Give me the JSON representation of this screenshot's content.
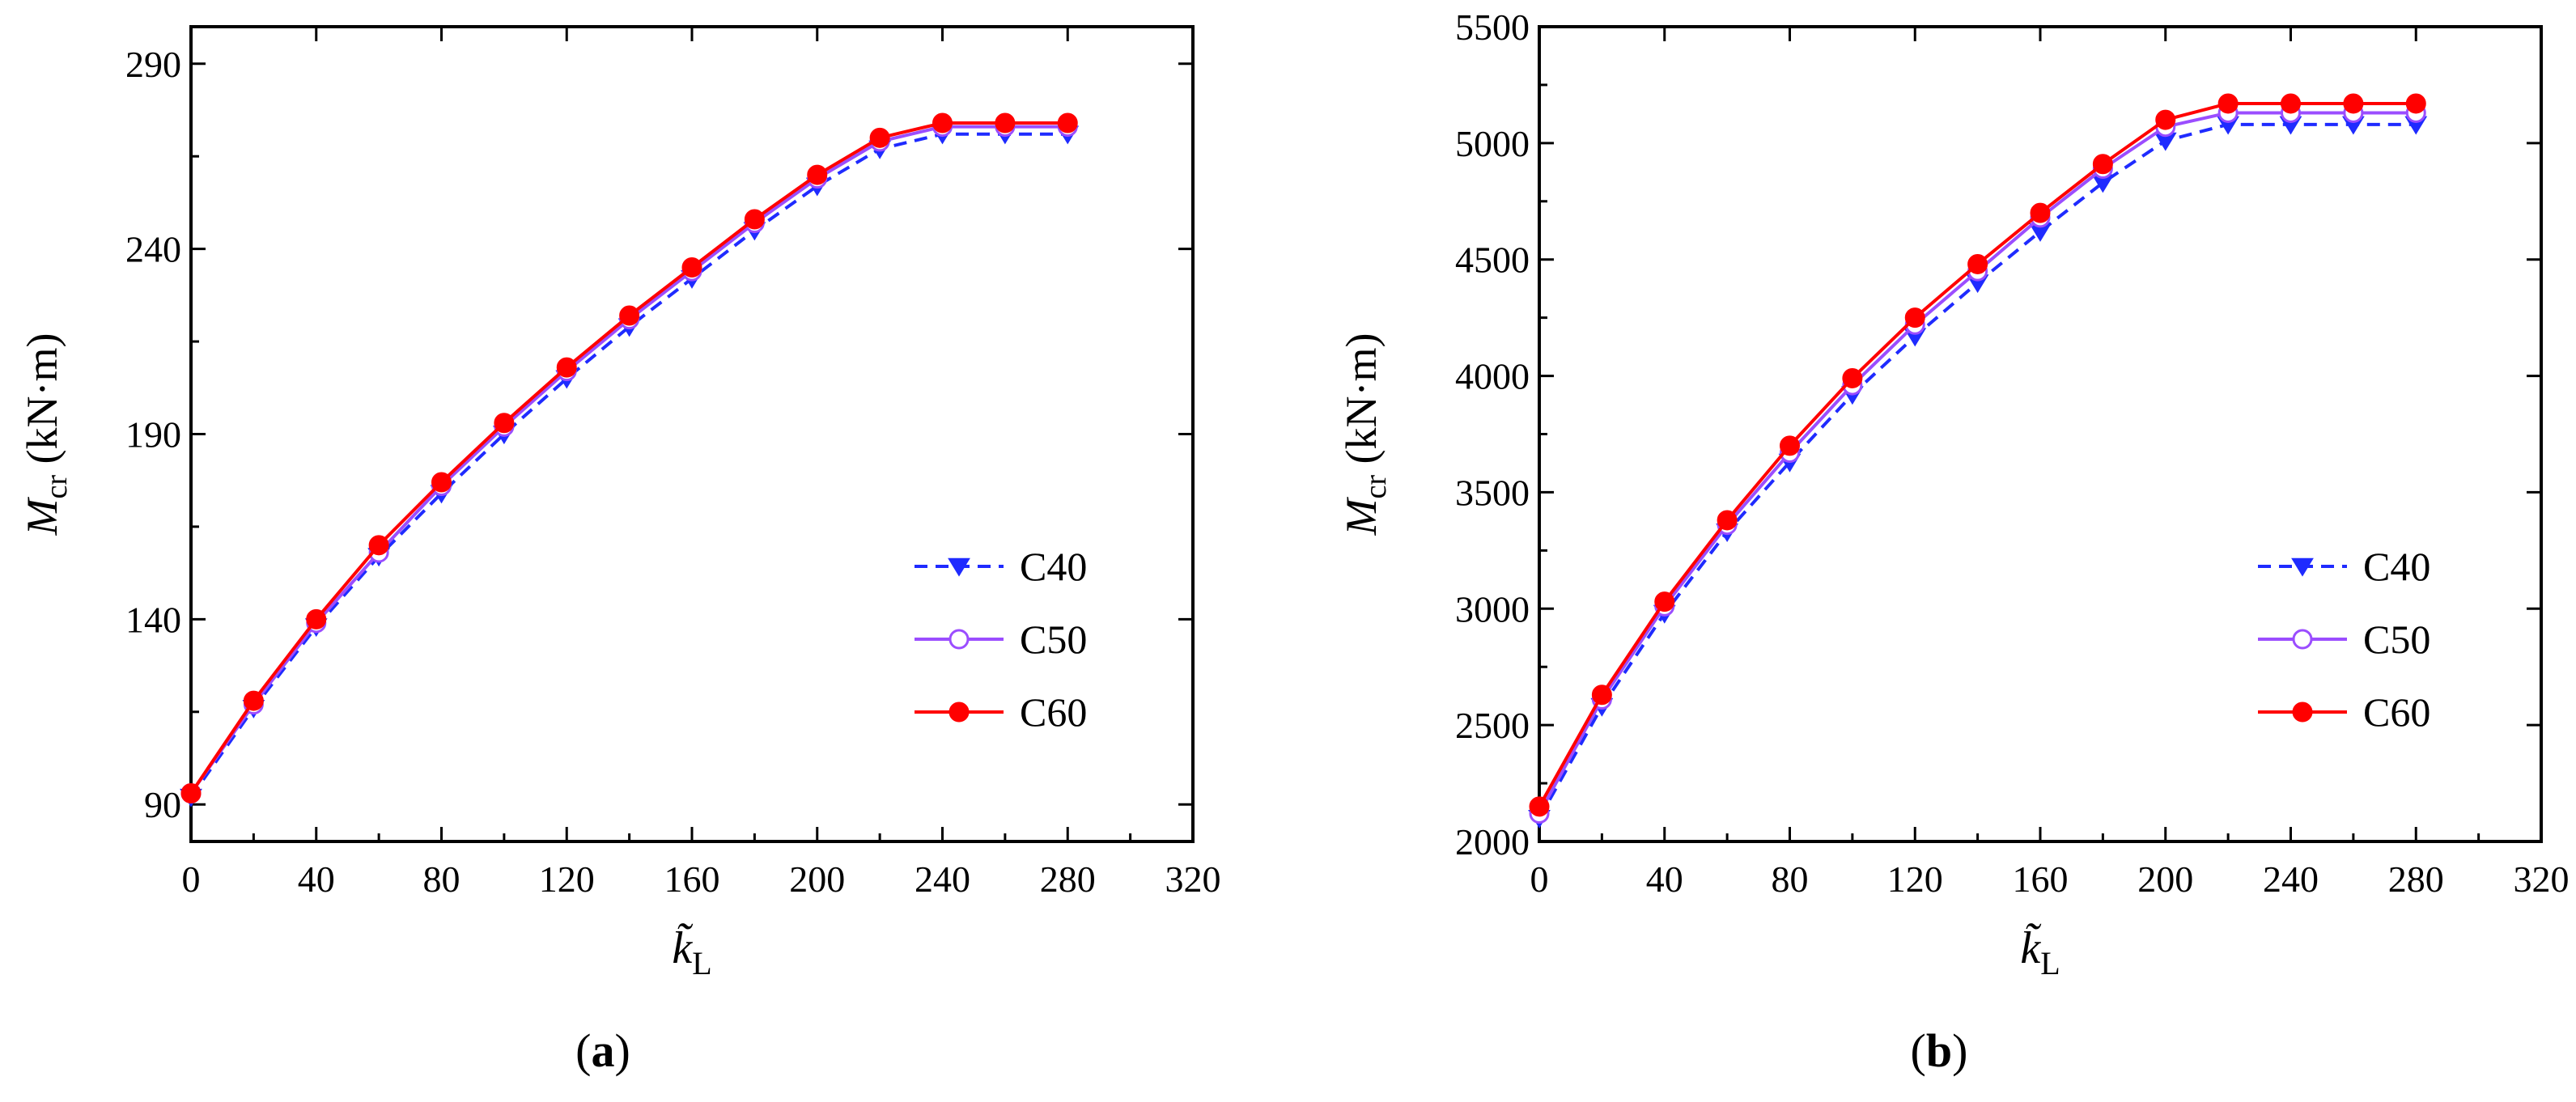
{
  "chart_data": [
    {
      "id": "a",
      "type": "line",
      "panel_label": "a",
      "title": "",
      "xlabel": "k̃",
      "xlabel_sub": "L",
      "ylabel": "M",
      "ylabel_sub": "cr",
      "ylabel_unit": " (kN·m)",
      "xlim": [
        0,
        320
      ],
      "ylim": [
        80,
        300
      ],
      "xticks": [
        0,
        40,
        80,
        120,
        160,
        200,
        240,
        280,
        320
      ],
      "yticks": [
        90,
        140,
        190,
        240,
        290
      ],
      "grid": false,
      "legend_position": "center-right",
      "x": [
        0,
        20,
        40,
        60,
        80,
        100,
        120,
        140,
        160,
        180,
        200,
        220,
        240,
        260,
        280
      ],
      "series": [
        {
          "name": "C40",
          "style": "dashed",
          "marker": "triangle-down",
          "color": "#1f2bff",
          "values": [
            92,
            116,
            138,
            157,
            174,
            190,
            205,
            219,
            232,
            245,
            257,
            267,
            271,
            271,
            271
          ]
        },
        {
          "name": "C50",
          "style": "solid",
          "marker": "circle-open",
          "color": "#9b4dff",
          "values": [
            93,
            117,
            139,
            158,
            176,
            192,
            207,
            221,
            234,
            247,
            259,
            269,
            273,
            273,
            273
          ]
        },
        {
          "name": "C60",
          "style": "solid",
          "marker": "circle-filled",
          "color": "#ff0000",
          "values": [
            93,
            118,
            140,
            160,
            177,
            193,
            208,
            222,
            235,
            248,
            260,
            270,
            274,
            274,
            274
          ]
        }
      ]
    },
    {
      "id": "b",
      "type": "line",
      "panel_label": "b",
      "title": "",
      "xlabel": "k̃",
      "xlabel_sub": "L",
      "ylabel": "M",
      "ylabel_sub": "cr",
      "ylabel_unit": " (kN·m)",
      "xlim": [
        0,
        320
      ],
      "ylim": [
        2000,
        5500
      ],
      "xticks": [
        0,
        40,
        80,
        120,
        160,
        200,
        240,
        280,
        320
      ],
      "yticks": [
        2000,
        2500,
        3000,
        3500,
        4000,
        4500,
        5000,
        5500
      ],
      "grid": false,
      "legend_position": "center-right",
      "x": [
        0,
        20,
        40,
        60,
        80,
        100,
        120,
        140,
        160,
        180,
        200,
        220,
        240,
        260,
        280
      ],
      "series": [
        {
          "name": "C40",
          "style": "dashed",
          "marker": "triangle-down",
          "color": "#1f2bff",
          "values": [
            2100,
            2580,
            2980,
            3330,
            3630,
            3920,
            4170,
            4400,
            4620,
            4830,
            5010,
            5080,
            5080,
            5080,
            5080
          ]
        },
        {
          "name": "C50",
          "style": "solid",
          "marker": "circle-open",
          "color": "#9b4dff",
          "values": [
            2120,
            2610,
            3010,
            3360,
            3670,
            3960,
            4220,
            4450,
            4680,
            4890,
            5070,
            5130,
            5130,
            5130,
            5130
          ]
        },
        {
          "name": "C60",
          "style": "solid",
          "marker": "circle-filled",
          "color": "#ff0000",
          "values": [
            2150,
            2630,
            3030,
            3380,
            3700,
            3990,
            4250,
            4480,
            4700,
            4910,
            5100,
            5170,
            5170,
            5170,
            5170
          ]
        }
      ]
    }
  ]
}
